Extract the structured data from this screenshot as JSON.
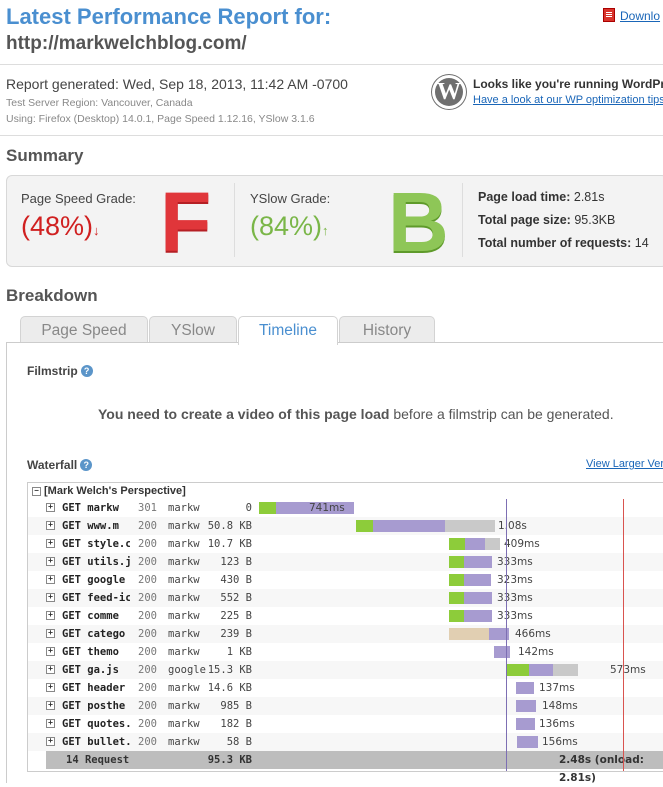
{
  "header": {
    "title": "Latest Performance Report for:",
    "url": "http://markwelchblog.com/",
    "download_label": "Downlo"
  },
  "report": {
    "generated": "Report generated: Wed, Sep 18, 2013, 11:42 AM -0700",
    "region": "Test Server Region: Vancouver, Canada",
    "using": "Using: Firefox (Desktop) 14.0.1, Page Speed 1.12.16, YSlow 3.1.6"
  },
  "wordpress": {
    "logo_letter": "W",
    "line1": "Looks like you're running WordPr",
    "line2": "Have a look at our WP optimization tips"
  },
  "summary": {
    "heading": "Summary",
    "pagespeed_label": "Page Speed Grade:",
    "pagespeed_value": "(48%)",
    "pagespeed_arrow": "↓",
    "pagespeed_letter": "F",
    "yslow_label": "YSlow Grade:",
    "yslow_value": "(84%)",
    "yslow_arrow": "↑",
    "yslow_letter": "B",
    "load_time_label": "Page load time:",
    "load_time": "2.81s",
    "page_size_label": "Total page size:",
    "page_size": "95.3KB",
    "requests_label": "Total number of requests:",
    "requests": "14",
    "colors": {
      "bad": "#d02020",
      "good": "#7ab648"
    }
  },
  "breakdown": {
    "heading": "Breakdown",
    "tabs": [
      {
        "label": "Page Speed"
      },
      {
        "label": "YSlow"
      },
      {
        "label": "Timeline"
      },
      {
        "label": "History"
      }
    ],
    "active_tab": "Timeline"
  },
  "filmstrip": {
    "heading": "Filmstrip",
    "message_bold": "You need to create a video of this page load",
    "message_rest": " before a filmstrip can be generated."
  },
  "waterfall": {
    "heading": "Waterfall",
    "view_larger": "View Larger Ver",
    "group": "[Mark Welch's Perspective]",
    "rows": [
      {
        "name": "GET markw",
        "status": "301",
        "domain": "markw",
        "size": "0",
        "duration": "741ms"
      },
      {
        "name": "GET www.m",
        "status": "200",
        "domain": "markw",
        "size": "50.8 KB",
        "duration": "1.08s"
      },
      {
        "name": "GET style.cs",
        "status": "200",
        "domain": "markw",
        "size": "10.7 KB",
        "duration": "409ms"
      },
      {
        "name": "GET utils.js",
        "status": "200",
        "domain": "markw",
        "size": "123 B",
        "duration": "333ms"
      },
      {
        "name": "GET google",
        "status": "200",
        "domain": "markw",
        "size": "430 B",
        "duration": "323ms"
      },
      {
        "name": "GET feed-ic",
        "status": "200",
        "domain": "markw",
        "size": "552 B",
        "duration": "333ms"
      },
      {
        "name": "GET comme",
        "status": "200",
        "domain": "markw",
        "size": "225 B",
        "duration": "333ms"
      },
      {
        "name": "GET catego",
        "status": "200",
        "domain": "markw",
        "size": "239 B",
        "duration": "466ms"
      },
      {
        "name": "GET themo",
        "status": "200",
        "domain": "markw",
        "size": "1 KB",
        "duration": "142ms"
      },
      {
        "name": "GET ga.js",
        "status": "200",
        "domain": "google",
        "size": "15.3 KB",
        "duration": "573ms"
      },
      {
        "name": "GET header",
        "status": "200",
        "domain": "markw",
        "size": "14.6 KB",
        "duration": "137ms"
      },
      {
        "name": "GET posthe",
        "status": "200",
        "domain": "markw",
        "size": "985 B",
        "duration": "148ms"
      },
      {
        "name": "GET quotes.",
        "status": "200",
        "domain": "markw",
        "size": "182 B",
        "duration": "136ms"
      },
      {
        "name": "GET bullet.g",
        "status": "200",
        "domain": "markw",
        "size": "58 B",
        "duration": "156ms"
      }
    ],
    "total_requests": "14 Request",
    "total_size": "95.3 KB",
    "total_time": "2.48s (onload: 2.81s)"
  }
}
